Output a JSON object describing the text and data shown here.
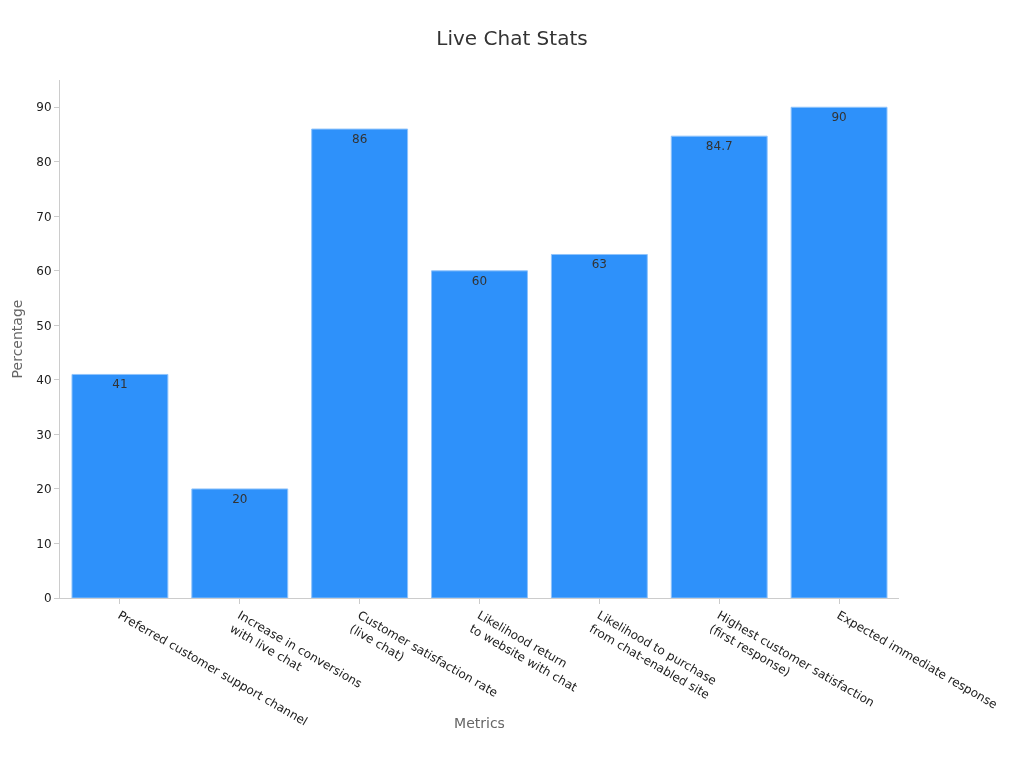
{
  "chart_data": {
    "type": "bar",
    "title": "Live Chat Stats",
    "xlabel": "Metrics",
    "ylabel": "Percentage",
    "categories": [
      "Preferred customer support channel",
      "Increase in conversions\nwith live chat",
      "Customer satisfaction rate\n(live chat)",
      "Likelihood return\nto website with chat",
      "Likelihood to purchase\nfrom chat-enabled site",
      "Highest customer satisfaction\n(first response)",
      "Expected immediate response"
    ],
    "values": [
      41,
      20,
      86,
      60,
      63,
      84.7,
      90
    ],
    "color": "#2e91fa",
    "data_labels": true,
    "ylim": [
      0,
      95
    ],
    "yticks": [
      0,
      10,
      20,
      30,
      40,
      50,
      60,
      70,
      80,
      90
    ],
    "grid": false
  }
}
